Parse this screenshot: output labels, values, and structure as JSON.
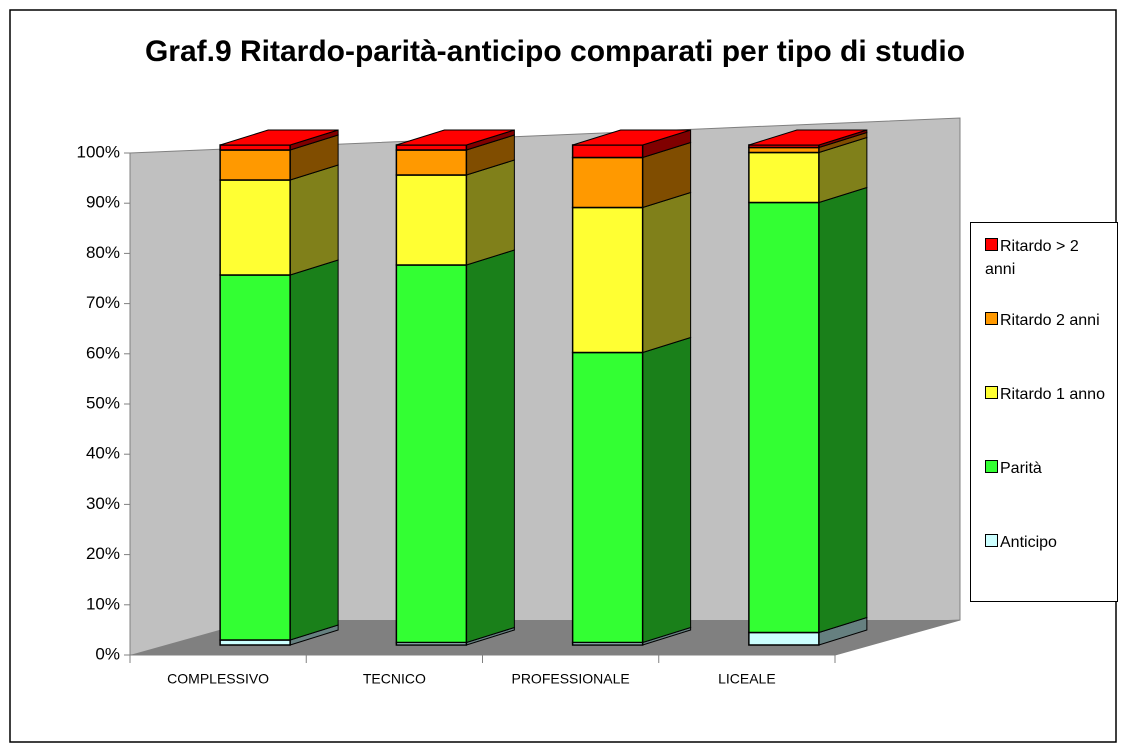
{
  "chart_data": {
    "type": "bar3d_stacked",
    "title": "Graf.9 Ritardo-parità-anticipo comparati per tipo di studio",
    "categories": [
      "COMPLESSIVO",
      "TECNICO",
      "PROFESSIONALE",
      "LICEALE"
    ],
    "series": [
      {
        "name": "Anticipo",
        "color": "#ccffff",
        "values": [
          1,
          0.5,
          0.5,
          2.5
        ]
      },
      {
        "name": "Parità",
        "color": "#33ff33",
        "values": [
          73,
          75.5,
          58,
          86
        ]
      },
      {
        "name": "Ritardo 1 anno",
        "color": "#ffff33",
        "values": [
          19,
          18,
          29,
          10
        ]
      },
      {
        "name": "Ritardo 2 anni",
        "color": "#ff9900",
        "values": [
          6,
          5,
          10,
          1
        ]
      },
      {
        "name": "Ritardo > 2 anni",
        "color": "#ff0000",
        "values": [
          1,
          1,
          2.5,
          0.5
        ]
      }
    ],
    "ylim": [
      0,
      100
    ],
    "yticks": [
      {
        "value": 0,
        "label": "0%"
      },
      {
        "value": 10,
        "label": "10%"
      },
      {
        "value": 20,
        "label": "20%"
      },
      {
        "value": 30,
        "label": "30%"
      },
      {
        "value": 40,
        "label": "40%"
      },
      {
        "value": 50,
        "label": "50%"
      },
      {
        "value": 60,
        "label": "60%"
      },
      {
        "value": 70,
        "label": "70%"
      },
      {
        "value": 80,
        "label": "80%"
      },
      {
        "value": 90,
        "label": "90%"
      },
      {
        "value": 100,
        "label": "100%"
      }
    ]
  }
}
